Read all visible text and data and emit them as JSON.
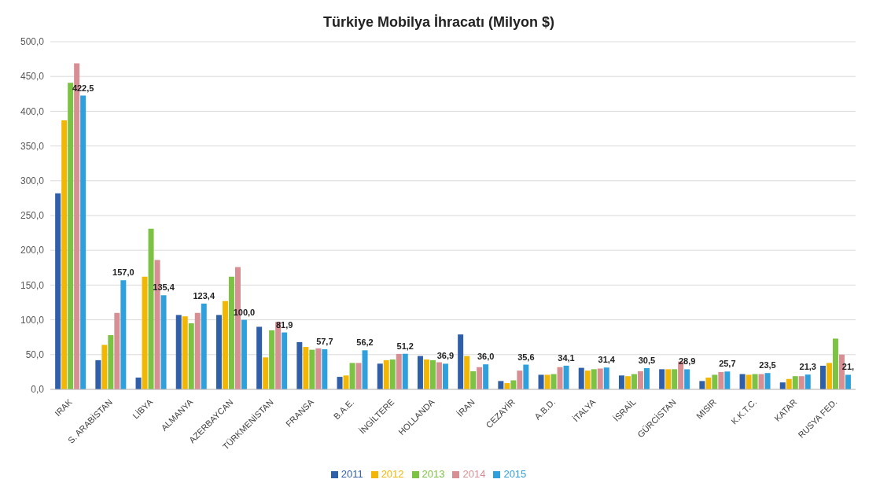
{
  "chart_data": {
    "type": "bar",
    "title": "Türkiye Mobilya İhracatı (Milyon $)",
    "categories": [
      "IRAK",
      "S. ARABİSTAN",
      "LİBYA",
      "ALMANYA",
      "AZERBAYCAN",
      "TÜRKMENİSTAN",
      "FRANSA",
      "B.A.E.",
      "İNGİLTERE",
      "HOLLANDA",
      "İRAN",
      "CEZAYİR",
      "A.B.D.",
      "İTALYA",
      "İSRAİL",
      "GÜRCİSTAN",
      "MISIR",
      "K.K.T.C.",
      "KATAR",
      "RUSYA FED."
    ],
    "series": [
      {
        "name": "2011",
        "color": "#2e5fa8",
        "values": [
          282,
          42,
          17,
          107,
          107,
          90,
          68,
          18,
          37,
          48,
          79,
          12,
          21,
          31,
          20,
          29,
          12,
          22,
          10,
          34
        ]
      },
      {
        "name": "2012",
        "color": "#f2b705",
        "values": [
          387,
          64,
          162,
          105,
          127,
          46,
          61,
          20,
          42,
          43,
          48,
          9,
          21,
          27,
          19,
          29,
          17,
          21,
          15,
          38
        ]
      },
      {
        "name": "2013",
        "color": "#7cc243",
        "values": [
          441,
          78,
          231,
          95,
          162,
          85,
          57,
          38,
          43,
          42,
          26,
          13,
          22,
          29,
          22,
          29,
          21,
          22,
          19,
          73
        ]
      },
      {
        "name": "2014",
        "color": "#d88f94",
        "values": [
          469,
          110,
          186,
          110,
          176,
          97,
          59,
          38,
          51,
          39,
          32,
          27,
          32,
          30,
          26,
          40,
          25,
          22,
          19,
          50
        ]
      },
      {
        "name": "2015",
        "color": "#2fa0dc",
        "values": [
          422.5,
          157.0,
          135.4,
          123.4,
          100.0,
          81.9,
          57.7,
          56.2,
          51.2,
          36.9,
          36.0,
          35.6,
          34.1,
          31.4,
          30.5,
          28.9,
          25.7,
          23.5,
          21.3,
          21
        ],
        "value_labels": [
          "422,5",
          "157,0",
          "135,4",
          "123,4",
          "100,0",
          "81,9",
          "57,7",
          "56,2",
          "51,2",
          "36,9",
          "36,0",
          "35,6",
          "34,1",
          "31,4",
          "30,5",
          "28,9",
          "25,7",
          "23,5",
          "21,3",
          "21,"
        ]
      }
    ],
    "ylim": [
      0,
      500
    ],
    "yticks": [
      {
        "value": 0,
        "label": "0,0"
      },
      {
        "value": 50,
        "label": "50,0"
      },
      {
        "value": 100,
        "label": "100,0"
      },
      {
        "value": 150,
        "label": "150,0"
      },
      {
        "value": 200,
        "label": "200,0"
      },
      {
        "value": 250,
        "label": "250,0"
      },
      {
        "value": 300,
        "label": "300,0"
      },
      {
        "value": 350,
        "label": "350,0"
      },
      {
        "value": 400,
        "label": "400,0"
      },
      {
        "value": 450,
        "label": "450,0"
      },
      {
        "value": 500,
        "label": "500,0"
      }
    ],
    "grid": "y",
    "legend": "bottom"
  }
}
